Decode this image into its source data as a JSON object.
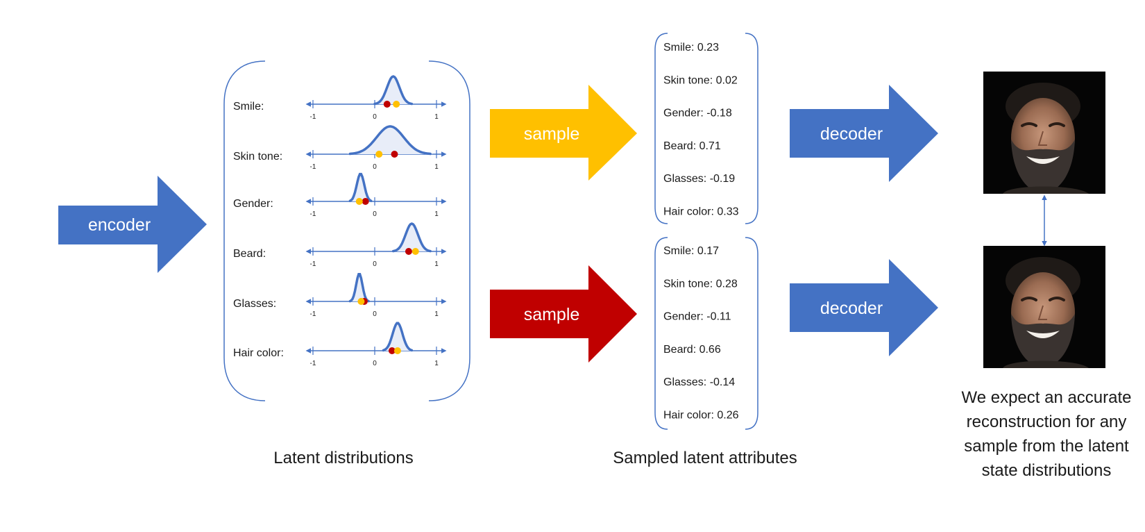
{
  "colors": {
    "blue": "#4472c4",
    "yellow": "#ffc000",
    "red": "#c00000",
    "fill_light": "#e8edf8",
    "text": "#1a1a1a"
  },
  "encoder": {
    "label": "encoder"
  },
  "latent": {
    "caption": "Latent distributions",
    "tick_labels": [
      "-1",
      "0",
      "1"
    ],
    "rows": [
      {
        "label": "Smile:",
        "mu": 0.3,
        "sigma": 0.1,
        "red": 0.2,
        "yellow": 0.35
      },
      {
        "label": "Skin tone:",
        "mu": 0.25,
        "sigma": 0.22,
        "red": 0.32,
        "yellow": 0.07
      },
      {
        "label": "Gender:",
        "mu": -0.23,
        "sigma": 0.06,
        "red": -0.15,
        "yellow": -0.25
      },
      {
        "label": "Beard:",
        "mu": 0.6,
        "sigma": 0.1,
        "red": 0.55,
        "yellow": 0.66
      },
      {
        "label": "Glasses:",
        "mu": -0.25,
        "sigma": 0.05,
        "red": -0.17,
        "yellow": -0.22
      },
      {
        "label": "Hair color:",
        "mu": 0.37,
        "sigma": 0.08,
        "red": 0.28,
        "yellow": 0.37
      }
    ]
  },
  "samplers": [
    {
      "label": "sample",
      "color": "#ffc000"
    },
    {
      "label": "sample",
      "color": "#c00000"
    }
  ],
  "sampled": {
    "caption": "Sampled latent attributes",
    "sets": [
      {
        "items": [
          "Smile:  0.23",
          "Skin tone: 0.02",
          "Gender: -0.18",
          "Beard: 0.71",
          "Glasses: -0.19",
          "Hair color: 0.33"
        ]
      },
      {
        "items": [
          "Smile:  0.17",
          "Skin tone: 0.28",
          "Gender: -0.11",
          "Beard: 0.66",
          "Glasses: -0.14",
          "Hair color: 0.26"
        ]
      }
    ]
  },
  "decoders": [
    {
      "label": "decoder"
    },
    {
      "label": "decoder"
    }
  ],
  "reconstruction": {
    "caption_lines": [
      "We expect an accurate",
      "reconstruction for any",
      "sample from the latent",
      "state distributions"
    ]
  }
}
